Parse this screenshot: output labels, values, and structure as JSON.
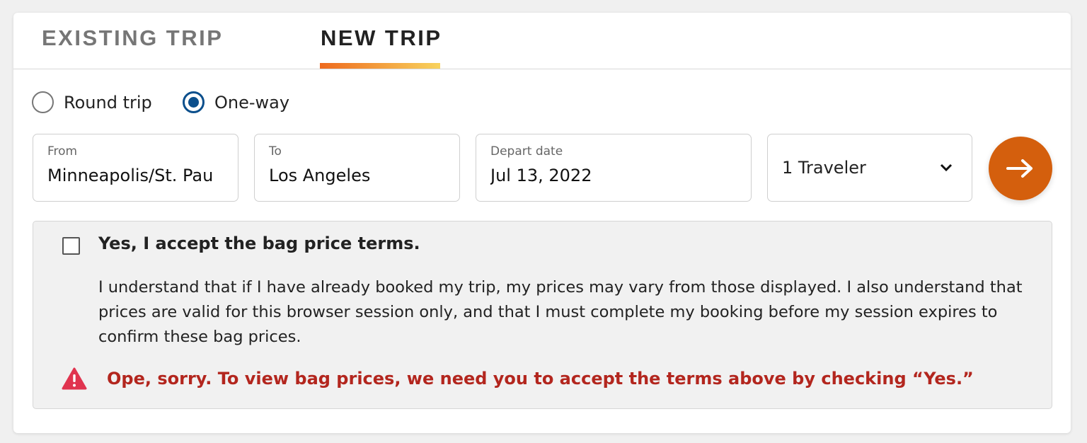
{
  "tabs": [
    {
      "label": "EXISTING TRIP",
      "active": false
    },
    {
      "label": "NEW TRIP",
      "active": true
    }
  ],
  "trip_type": {
    "options": [
      {
        "label": "Round trip",
        "selected": false
      },
      {
        "label": "One-way",
        "selected": true
      }
    ]
  },
  "fields": {
    "from": {
      "label": "From",
      "value": "Minneapolis/St. Pau"
    },
    "to": {
      "label": "To",
      "value": "Los Angeles"
    },
    "depart": {
      "label": "Depart date",
      "value": "Jul 13, 2022"
    }
  },
  "travelers": {
    "value": "1 Traveler"
  },
  "submit": {
    "icon": "arrow-right-icon",
    "color": "#d45f0d"
  },
  "terms": {
    "checked": false,
    "title": "Yes, I accept the bag price terms.",
    "body": "I understand that if I have already booked my trip, my prices may vary from those displayed. I also understand that prices are valid for this browser session only, and that I must complete my booking before my session expires to confirm these bag prices.",
    "error": "Ope, sorry. To view bag prices, we need you to accept the terms above by checking “Yes.”",
    "error_color": "#b3261e"
  },
  "colors": {
    "accent": "#d45f0d",
    "radio": "#0b4f8c"
  }
}
